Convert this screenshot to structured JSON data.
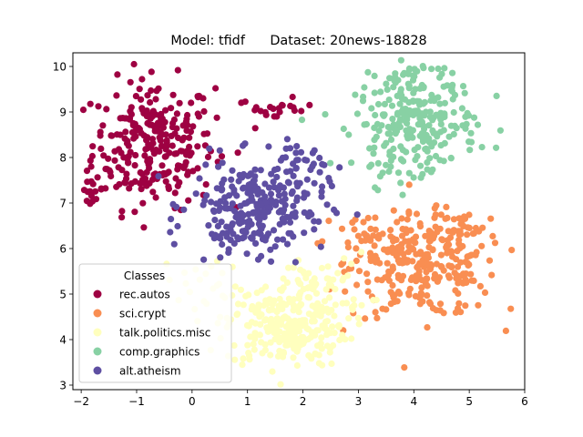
{
  "chart_data": {
    "type": "scatter",
    "title": "Model: tfidf      Dataset: 20news-18828",
    "xlabel": "",
    "ylabel": "",
    "xlim": [
      -2.15,
      6.0
    ],
    "ylim": [
      2.9,
      10.3
    ],
    "xticks": [
      -2,
      -1,
      0,
      1,
      2,
      3,
      4,
      5,
      6
    ],
    "yticks": [
      3,
      4,
      5,
      6,
      7,
      8,
      9,
      10
    ],
    "grid": false,
    "legend": {
      "title": "Classes",
      "placement": "lower-left"
    },
    "series": [
      {
        "name": "rec.autos",
        "color": "#9e0142",
        "cluster": {
          "cx": -0.7,
          "cy": 8.3,
          "sx": 0.55,
          "sy": 0.7,
          "n": 260
        },
        "extra": [
          {
            "cx": 1.5,
            "cy": 9.05,
            "sx": 0.35,
            "sy": 0.12,
            "n": 22
          },
          {
            "cx": -1.8,
            "cy": 7.3,
            "sx": 0.1,
            "sy": 0.12,
            "n": 14
          }
        ]
      },
      {
        "name": "sci.crypt",
        "color": "#f98e52",
        "cluster": {
          "cx": 4.2,
          "cy": 5.6,
          "sx": 0.65,
          "sy": 0.55,
          "n": 260
        },
        "extra": [
          {
            "cx": 3.1,
            "cy": 6.1,
            "sx": 0.4,
            "sy": 0.35,
            "n": 40
          },
          {
            "cx": 4.9,
            "cy": 6.4,
            "sx": 0.3,
            "sy": 0.3,
            "n": 25
          }
        ]
      },
      {
        "name": "talk.politics.misc",
        "color": "#ffffbe",
        "cluster": {
          "cx": 1.7,
          "cy": 4.3,
          "sx": 0.55,
          "sy": 0.45,
          "n": 260
        },
        "extra": [
          {
            "cx": 2.3,
            "cy": 5.2,
            "sx": 0.45,
            "sy": 0.35,
            "n": 50
          },
          {
            "cx": 0.3,
            "cy": 5.3,
            "sx": 0.4,
            "sy": 0.3,
            "n": 20
          }
        ]
      },
      {
        "name": "comp.graphics",
        "color": "#88d1a4",
        "cluster": {
          "cx": 4.05,
          "cy": 8.75,
          "sx": 0.55,
          "sy": 0.5,
          "n": 230
        },
        "extra": [
          {
            "cx": 4.1,
            "cy": 9.8,
            "sx": 0.3,
            "sy": 0.15,
            "n": 25
          },
          {
            "cx": 3.5,
            "cy": 7.9,
            "sx": 0.3,
            "sy": 0.3,
            "n": 15
          }
        ]
      },
      {
        "name": "alt.atheism",
        "color": "#5e4fa2",
        "cluster": {
          "cx": 1.2,
          "cy": 6.95,
          "sx": 0.6,
          "sy": 0.5,
          "n": 240
        },
        "extra": [
          {
            "cx": 1.9,
            "cy": 7.9,
            "sx": 0.35,
            "sy": 0.2,
            "n": 25
          },
          {
            "cx": 0.5,
            "cy": 6.1,
            "sx": 0.35,
            "sy": 0.2,
            "n": 20
          }
        ]
      }
    ]
  }
}
